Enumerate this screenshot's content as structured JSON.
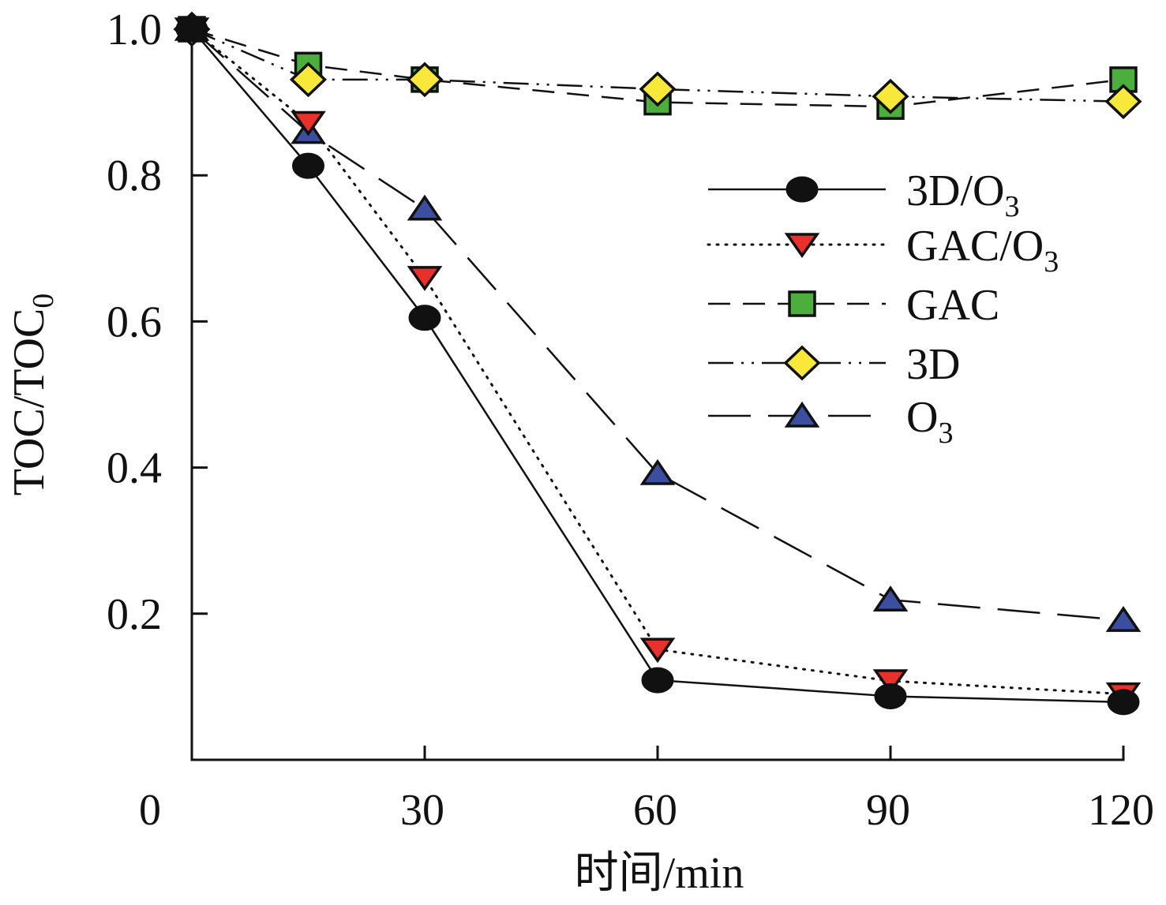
{
  "chart_data": {
    "type": "line",
    "title": "",
    "xlabel": "时间/min",
    "ylabel": "TOC/TOC",
    "ylabel_subscript": "0",
    "xlim": [
      0,
      120
    ],
    "ylim": [
      0,
      1.0
    ],
    "xticks": [
      0,
      30,
      60,
      90,
      120
    ],
    "xtick_labels": [
      "0",
      "30",
      "60",
      "90",
      "120"
    ],
    "yticks": [
      0.2,
      0.4,
      0.6,
      0.8,
      1.0
    ],
    "ytick_labels": [
      "0.2",
      "0.4",
      "0.6",
      "0.8",
      "1.0"
    ],
    "grid": false,
    "legend_position": "center-right",
    "x": [
      0,
      15,
      30,
      60,
      90,
      120
    ],
    "series": [
      {
        "name": "3D/O3",
        "label_main": "3D/O",
        "label_sub": "3",
        "marker": "circle",
        "line": "solid",
        "color": "#111111",
        "values": [
          1.0,
          0.813,
          0.605,
          0.109,
          0.087,
          0.079
        ]
      },
      {
        "name": "GAC/O3",
        "label_main": "GAC/O",
        "label_sub": "3",
        "marker": "triangle-down",
        "line": "dotted",
        "color": "#e8312a",
        "values": [
          1.0,
          0.872,
          0.66,
          0.151,
          0.108,
          0.09
        ]
      },
      {
        "name": "GAC",
        "label_main": "GAC",
        "label_sub": "",
        "marker": "square",
        "line": "dashed",
        "color": "#4cae3c",
        "values": [
          1.0,
          0.951,
          0.931,
          0.9,
          0.894,
          0.931
        ]
      },
      {
        "name": "3D",
        "label_main": "3D",
        "label_sub": "",
        "marker": "diamond",
        "line": "dash-dot-dot",
        "color": "#f7e83a",
        "values": [
          1.0,
          0.931,
          0.931,
          0.918,
          0.908,
          0.901
        ]
      },
      {
        "name": "O3",
        "label_main": "O",
        "label_sub": "3",
        "marker": "triangle-up",
        "line": "long-dash",
        "color": "#3b4ea0",
        "values": [
          1.0,
          0.859,
          0.754,
          0.392,
          0.219,
          0.191
        ]
      }
    ]
  }
}
